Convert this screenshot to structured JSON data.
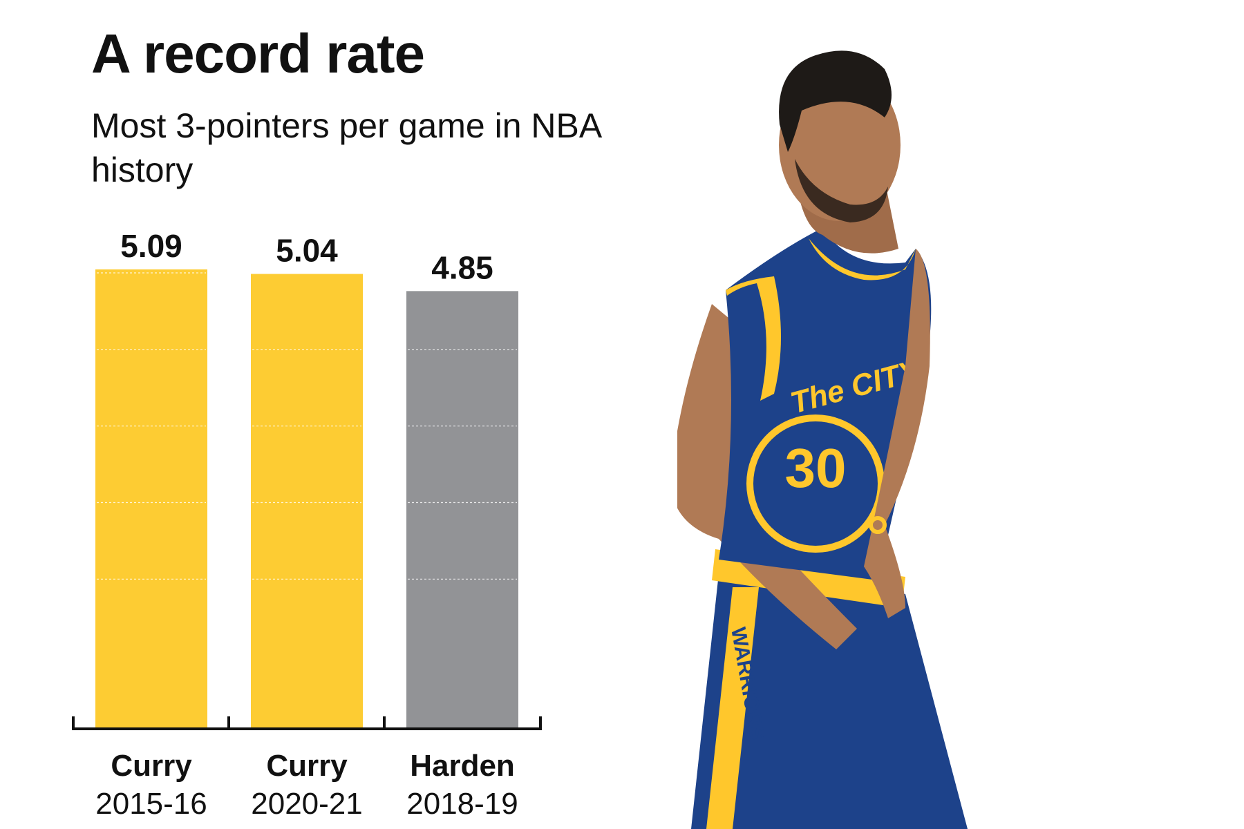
{
  "title": "A record rate",
  "subtitle": "Most 3-pointers per game in NBA history",
  "chart_data": {
    "type": "bar",
    "categories": [
      "Curry 2015-16",
      "Curry 2020-21",
      "Harden 2018-19"
    ],
    "category_names": [
      "Curry",
      "Curry",
      "Harden"
    ],
    "category_seasons": [
      "2015-16",
      "2020-21",
      "2018-19"
    ],
    "values": [
      5.09,
      5.04,
      4.85
    ],
    "value_labels": [
      "5.09",
      "5.04",
      "4.85"
    ],
    "colors": [
      "#FDCC33",
      "#FDCC33",
      "#929396"
    ],
    "ylim": [
      0,
      5.09
    ],
    "grid": true
  },
  "photo": {
    "jersey_text": "The CITY",
    "number": "30",
    "side_text": "WARRIORS",
    "colors": {
      "jersey": "#1D428A",
      "trim": "#FFC72C",
      "skin": "#B07A55",
      "hair": "#1E1A17"
    }
  }
}
